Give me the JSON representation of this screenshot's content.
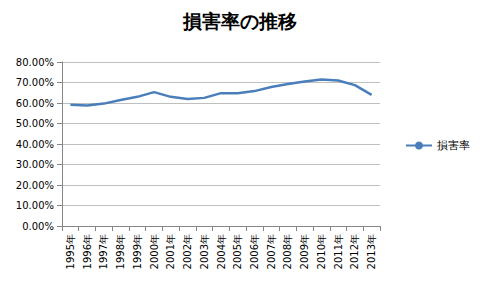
{
  "chart_data": {
    "type": "line",
    "title": "損害率の推移",
    "categories": [
      "1995年",
      "1996年",
      "1997年",
      "1998年",
      "1999年",
      "2000年",
      "2001年",
      "2002年",
      "2003年",
      "2004年",
      "2005年",
      "2006年",
      "2007年",
      "2008年",
      "2009年",
      "2010年",
      "2011年",
      "2012年",
      "2013年"
    ],
    "series": [
      {
        "name": "損害率",
        "color": "#4a7ebb",
        "values": [
          59.2,
          58.8,
          59.7,
          61.5,
          63.0,
          65.3,
          63.0,
          62.0,
          62.5,
          64.8,
          64.8,
          65.8,
          67.8,
          69.3,
          70.5,
          71.5,
          71.0,
          68.7,
          64.0
        ]
      }
    ],
    "ylim": [
      0,
      80
    ],
    "yticks": [
      {
        "value": 0,
        "label": "0.00%"
      },
      {
        "value": 10,
        "label": "10.00%"
      },
      {
        "value": 20,
        "label": "20.00%"
      },
      {
        "value": 30,
        "label": "30.00%"
      },
      {
        "value": 40,
        "label": "40.00%"
      },
      {
        "value": 50,
        "label": "50.00%"
      },
      {
        "value": 60,
        "label": "60.00%"
      },
      {
        "value": 70,
        "label": "70.00%"
      },
      {
        "value": 80,
        "label": "80.00%"
      }
    ],
    "grid": true,
    "legend": "right"
  }
}
